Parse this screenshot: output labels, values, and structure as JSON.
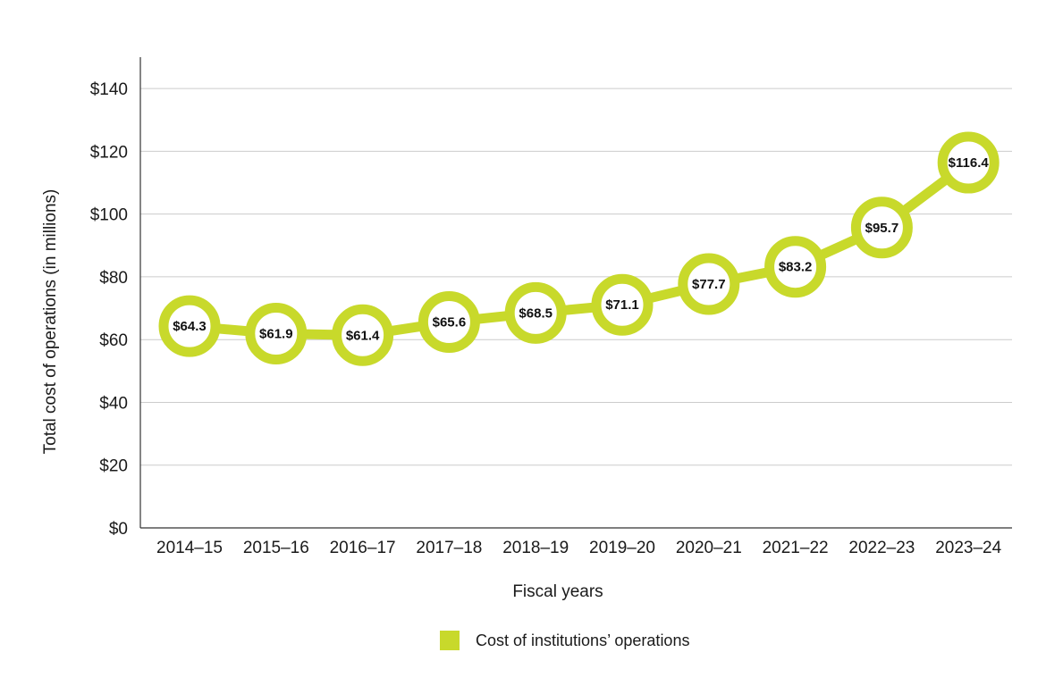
{
  "chart_data": {
    "type": "line",
    "categories": [
      "2014–15",
      "2015–16",
      "2016–17",
      "2017–18",
      "2018–19",
      "2019–20",
      "2020–21",
      "2021–22",
      "2022–23",
      "2023–24"
    ],
    "series": [
      {
        "name": "Cost of institutions’ operations",
        "values": [
          64.3,
          61.9,
          61.4,
          65.6,
          68.5,
          71.1,
          77.7,
          83.2,
          95.7,
          116.4
        ],
        "labels": [
          "$64.3",
          "$61.9",
          "$61.4",
          "$65.6",
          "$68.5",
          "$71.1",
          "$77.7",
          "$83.2",
          "$95.7",
          "$116.4"
        ],
        "color": "#c8d92b"
      }
    ],
    "xlabel": "Fiscal years",
    "ylabel": "Total cost of operations (in millions)",
    "ylim": [
      0,
      150
    ],
    "yticks": [
      0,
      20,
      40,
      60,
      80,
      100,
      120,
      140
    ],
    "ytick_labels": [
      "$0",
      "$20",
      "$40",
      "$60",
      "$80",
      "$100",
      "$120",
      "$140"
    ],
    "grid": true,
    "legend": "bottom-center",
    "colors": {
      "axis": "#333333",
      "grid": "#cccccc",
      "text": "#1a1a1a"
    }
  }
}
